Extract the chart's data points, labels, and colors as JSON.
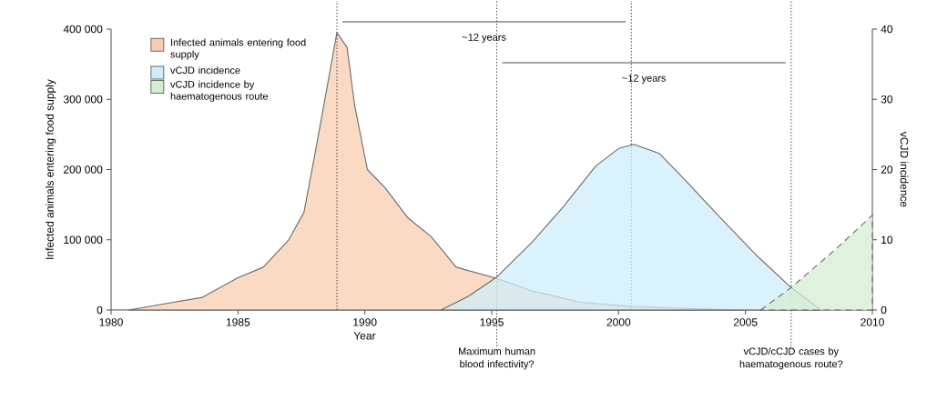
{
  "chart_data": {
    "type": "area",
    "xlabel": "Year",
    "ylabel": "Infected animals entering food supply",
    "y2label": "vCJD incidence",
    "xlim": [
      1980,
      2010
    ],
    "xticks": [
      1980,
      1985,
      1990,
      1995,
      2000,
      2005,
      2010
    ],
    "ylim": [
      0,
      400000
    ],
    "yticks": [
      0,
      {
        "value": 100000,
        "label": "100 000"
      },
      {
        "value": 200000,
        "label": "200 000"
      },
      {
        "value": 300000,
        "label": "300 000"
      },
      {
        "value": 400000,
        "label": "400 000"
      }
    ],
    "y2lim": [
      0,
      40
    ],
    "y2ticks": [
      0,
      10,
      20,
      30,
      40
    ],
    "legend": "top left",
    "series": [
      {
        "name": "Infected animals entering food supply",
        "color": "#f9cdb0",
        "x": [
          1980.7,
          1982.3,
          1983.6,
          1985.0,
          1986.0,
          1987.0,
          1987.6,
          1988.1,
          1988.6,
          1988.9,
          1989.3,
          1989.6,
          1990.1,
          1990.8,
          1991.7,
          1992.6,
          1993.6,
          1995.2,
          1996.6,
          1998.5,
          2000.5,
          2002.9,
          2004.9
        ],
        "values": [
          0,
          10000,
          18000,
          46000,
          61000,
          100000,
          139000,
          235000,
          335000,
          395000,
          374000,
          291000,
          200000,
          174000,
          131000,
          105000,
          61000,
          45000,
          27000,
          11000,
          5000,
          2000,
          0
        ]
      },
      {
        "name": "vCJD incidence",
        "color": "#cdeefa",
        "axis": "y2",
        "x": [
          1993.0,
          1994.1,
          1995.2,
          1996.6,
          1997.8,
          1999.1,
          2000.0,
          2000.6,
          2001.6,
          2002.7,
          2004.1,
          2005.4,
          2006.8,
          2007.9,
          2008.0
        ],
        "values": [
          0,
          2.0,
          4.7,
          9.7,
          14.6,
          20.5,
          23.0,
          23.6,
          22.3,
          18.2,
          12.8,
          7.9,
          3.2,
          0.2,
          0
        ]
      },
      {
        "name": "vCJD incidence by haematogenous route",
        "color": "#d5ecd3",
        "axis": "y2",
        "line_style": "dashed",
        "x": [
          2005.6,
          2006.8,
          2008.6,
          2010.0
        ],
        "values": [
          0,
          3.2,
          8.8,
          13.5
        ]
      }
    ],
    "ref_lines": [
      {
        "axis": "x",
        "value": 1988.9,
        "line_style": "dotted"
      },
      {
        "axis": "x",
        "value": 1995.2,
        "line_style": "dotted",
        "label": "Maximum human blood infectivity?"
      },
      {
        "axis": "x",
        "value": 2000.5,
        "line_style": "dotted"
      },
      {
        "axis": "x",
        "value": 2006.8,
        "line_style": "dotted",
        "label": "vCJD/cCJD cases by haematogenous route?"
      }
    ],
    "annotations": [
      "~12 years",
      "~12 years"
    ]
  }
}
